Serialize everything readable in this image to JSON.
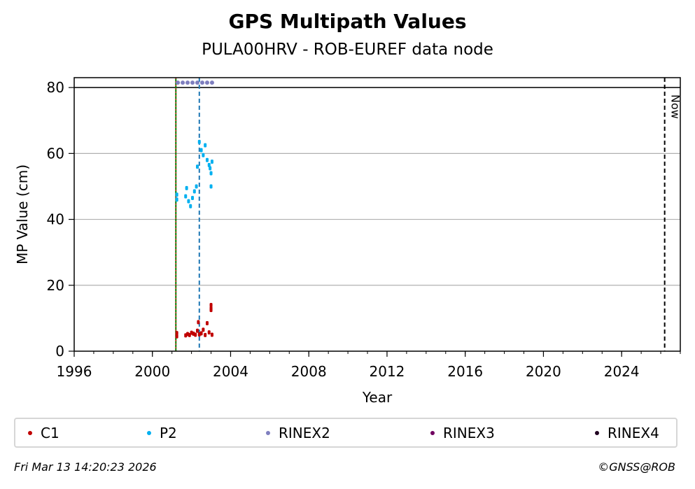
{
  "chart_data": {
    "type": "scatter",
    "title": "GPS Multipath Values",
    "subtitle": "PULA00HRV - ROB-EUREF data node",
    "xlabel": "Year",
    "ylabel": "MP Value (cm)",
    "xlim": [
      1996,
      2027
    ],
    "ylim": [
      0,
      83
    ],
    "x_ticks": [
      1996,
      2000,
      2004,
      2008,
      2012,
      2016,
      2020,
      2024
    ],
    "y_ticks": [
      0,
      20,
      40,
      60,
      80
    ],
    "grid": "horizontal",
    "reference_line": 80,
    "vertical_lines": [
      {
        "x": 2001.2,
        "color": "#008000",
        "style": "solid",
        "label": ""
      },
      {
        "x": 2001.2,
        "color": "#d62728",
        "style": "dotted",
        "label": ""
      },
      {
        "x": 2002.4,
        "color": "#1f77b4",
        "style": "dashed",
        "label": ""
      },
      {
        "x": 2026.2,
        "color": "#000000",
        "style": "dashed",
        "label": "Now"
      }
    ],
    "series": [
      {
        "name": "C1",
        "color": "#c00000",
        "x": [
          2001.25,
          2001.25,
          2001.7,
          2001.8,
          2001.9,
          2002.0,
          2002.1,
          2002.2,
          2002.3,
          2002.35,
          2002.4,
          2002.5,
          2002.6,
          2002.7,
          2002.8,
          2002.9,
          2003.0,
          2003.0,
          2003.0,
          2003.05
        ],
        "values": [
          5.5,
          4.5,
          4.8,
          5.2,
          4.9,
          5.6,
          5.3,
          5.0,
          6.2,
          8.8,
          5.1,
          5.4,
          6.5,
          4.9,
          8.5,
          5.7,
          14.0,
          13.0,
          12.5,
          5.0
        ]
      },
      {
        "name": "P2",
        "color": "#00b0f0",
        "x": [
          2001.25,
          2001.25,
          2001.7,
          2001.75,
          2001.85,
          2001.95,
          2002.05,
          2002.15,
          2002.25,
          2002.3,
          2002.4,
          2002.5,
          2002.6,
          2002.7,
          2002.8,
          2002.9,
          2002.95,
          2003.0,
          2003.05,
          2003.0
        ],
        "values": [
          47.5,
          46.0,
          47.0,
          49.5,
          45.5,
          44.0,
          46.5,
          48.5,
          50.0,
          56.0,
          63.5,
          61.0,
          59.5,
          62.5,
          58.0,
          56.5,
          55.5,
          54.0,
          57.5,
          50.0
        ]
      },
      {
        "name": "RINEX2",
        "color": "#7f7fbf",
        "x": [
          2001.3,
          2001.55,
          2001.8,
          2002.05,
          2002.3,
          2002.55,
          2002.8,
          2003.05
        ],
        "values": [
          81.5,
          81.5,
          81.5,
          81.5,
          81.5,
          81.5,
          81.5,
          81.5
        ]
      },
      {
        "name": "RINEX3",
        "color": "#700060",
        "x": [],
        "values": []
      },
      {
        "name": "RINEX4",
        "color": "#200020",
        "x": [],
        "values": []
      }
    ],
    "legend_position": "bottom"
  },
  "footer": {
    "timestamp": "Fri Mar 13 14:20:23 2026",
    "copyright": "©GNSS@ROB"
  }
}
